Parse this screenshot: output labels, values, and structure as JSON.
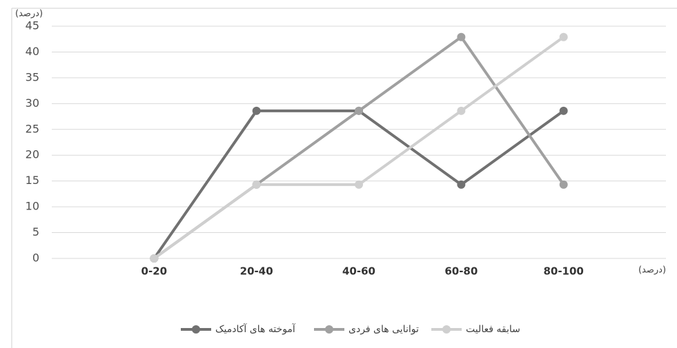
{
  "chart_data": {
    "type": "line",
    "y_label": "(درصد)",
    "x_label": "(درصد)",
    "categories": [
      null,
      "0-20",
      "20-40",
      "40-60",
      "60-80",
      "80-100",
      null
    ],
    "series": [
      {
        "name": "آموخته های آکادمیک",
        "color": "#717171",
        "values": [
          null,
          0,
          28.6,
          28.6,
          14.3,
          28.6,
          null
        ]
      },
      {
        "name": "توانایی های فردی",
        "color": "#a0a0a0",
        "values": [
          null,
          0,
          14.3,
          28.6,
          42.9,
          14.3,
          null
        ]
      },
      {
        "name": "سابقه فعالیت",
        "color": "#cfcfcf",
        "values": [
          null,
          0,
          14.3,
          14.3,
          28.6,
          42.9,
          null
        ]
      }
    ],
    "ylim": [
      0,
      45
    ],
    "yticks": [
      0,
      5,
      10,
      15,
      20,
      25,
      30,
      35,
      40,
      45
    ],
    "grid": true,
    "legend": "bottom"
  }
}
